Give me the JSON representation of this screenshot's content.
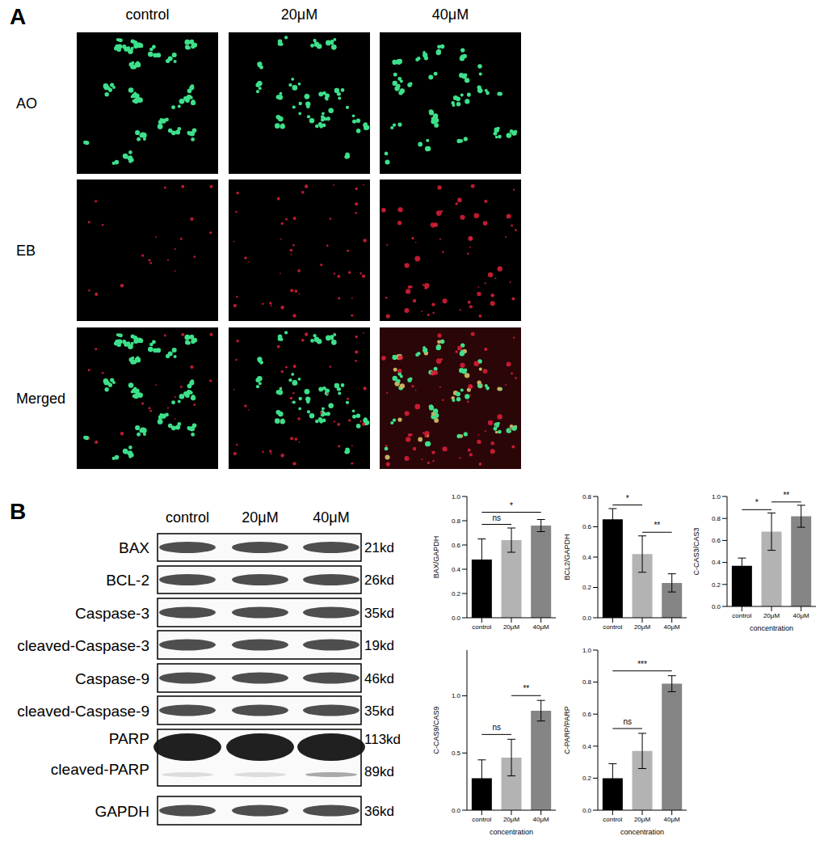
{
  "panel_a": {
    "label": "A",
    "columns": [
      "control",
      "20μM",
      "40μM"
    ],
    "rows": [
      "AO",
      "EB",
      "Merged"
    ]
  },
  "panel_b": {
    "label": "B",
    "blot": {
      "columns": [
        "control",
        "20μM",
        "40μM"
      ],
      "rows": [
        {
          "labels": [
            "BAX"
          ],
          "kd": [
            "21kd"
          ]
        },
        {
          "labels": [
            "BCL-2"
          ],
          "kd": [
            "26kd"
          ]
        },
        {
          "labels": [
            "Caspase-3"
          ],
          "kd": [
            "35kd"
          ]
        },
        {
          "labels": [
            "cleaved-Caspase-3"
          ],
          "kd": [
            "19kd"
          ]
        },
        {
          "labels": [
            "Caspase-9"
          ],
          "kd": [
            "46kd"
          ]
        },
        {
          "labels": [
            "cleaved-Caspase-9"
          ],
          "kd": [
            "35kd"
          ]
        },
        {
          "labels": [
            "PARP",
            "cleaved-PARP"
          ],
          "kd": [
            "113kd",
            "89kd"
          ]
        },
        {
          "labels": [
            "GAPDH"
          ],
          "kd": [
            "36kd"
          ]
        }
      ]
    }
  },
  "chart_data": [
    {
      "type": "bar",
      "ylabel": "BAX/GAPDH",
      "categories": [
        "control",
        "20μM",
        "40μM"
      ],
      "values": [
        0.48,
        0.64,
        0.76
      ],
      "errors": [
        0.17,
        0.1,
        0.05
      ],
      "colors": [
        "#000000",
        "#b3b3b3",
        "#858585"
      ],
      "ylim": [
        0,
        1.0
      ],
      "yticks": [
        {
          "value": 0,
          "label": "0.0"
        },
        0.2,
        0.4,
        0.6,
        0.8,
        {
          "value": 1,
          "label": "1.0"
        }
      ],
      "annotations": [
        {
          "from": "control",
          "to": "20μM",
          "text": "ns"
        },
        {
          "from": "control",
          "to": "40μM",
          "text": "*"
        }
      ]
    },
    {
      "type": "bar",
      "ylabel": "BCL2/GAPDH",
      "categories": [
        "control",
        "20μM",
        "40μM"
      ],
      "values": [
        0.65,
        0.42,
        0.23
      ],
      "errors": [
        0.07,
        0.12,
        0.06
      ],
      "colors": [
        "#000000",
        "#b3b3b3",
        "#858585"
      ],
      "ylim": [
        0,
        0.8
      ],
      "yticks": [
        {
          "value": 0,
          "label": "0.0"
        },
        0.2,
        0.4,
        0.6,
        0.8
      ],
      "annotations": [
        {
          "from": "control",
          "to": "20μM",
          "text": "*"
        },
        {
          "from": "20μM",
          "to": "40μM",
          "text": "**"
        }
      ]
    },
    {
      "type": "bar",
      "ylabel": "C-CAS3/CAS3",
      "xlabel": "concentration",
      "categories": [
        "control",
        "20μM",
        "40μM"
      ],
      "values": [
        0.37,
        0.68,
        0.82
      ],
      "errors": [
        0.07,
        0.17,
        0.1
      ],
      "colors": [
        "#000000",
        "#b3b3b3",
        "#858585"
      ],
      "ylim": [
        0,
        1.0
      ],
      "yticks": [
        {
          "value": 0,
          "label": "0.0"
        },
        0.2,
        0.4,
        0.6,
        0.8,
        {
          "value": 1,
          "label": "1.0"
        }
      ],
      "annotations": [
        {
          "from": "control",
          "to": "20μM",
          "text": "*"
        },
        {
          "from": "20μM",
          "to": "40μM",
          "text": "**"
        }
      ]
    },
    {
      "type": "bar",
      "ylabel": "C-CAS9/CAS9",
      "xlabel": "concentration",
      "categories": [
        "control",
        "20μM",
        "40μM"
      ],
      "values": [
        0.28,
        0.46,
        0.87
      ],
      "errors": [
        0.16,
        0.16,
        0.09
      ],
      "colors": [
        "#000000",
        "#b3b3b3",
        "#858585"
      ],
      "ylim": [
        0,
        1.4
      ],
      "yticks": [
        {
          "value": 0,
          "label": "0.0"
        },
        0.5,
        {
          "value": 1,
          "label": "1.0"
        }
      ],
      "annotations": [
        {
          "from": "control",
          "to": "20μM",
          "text": "ns"
        },
        {
          "from": "20μM",
          "to": "40μM",
          "text": "**"
        }
      ]
    },
    {
      "type": "bar",
      "ylabel": "C-PARP/PARP",
      "xlabel": "concentration",
      "categories": [
        "control",
        "20μM",
        "40μM"
      ],
      "values": [
        0.2,
        0.37,
        0.79
      ],
      "errors": [
        0.09,
        0.11,
        0.05
      ],
      "colors": [
        "#000000",
        "#b3b3b3",
        "#858585"
      ],
      "ylim": [
        0,
        1.0
      ],
      "yticks": [
        {
          "value": 0,
          "label": "0.0"
        },
        0.2,
        0.4,
        0.6,
        0.8,
        {
          "value": 1,
          "label": "1.0"
        }
      ],
      "annotations": [
        {
          "from": "control",
          "to": "20μM",
          "text": "ns"
        },
        {
          "from": "control",
          "to": "40μM",
          "text": "***"
        }
      ]
    }
  ]
}
